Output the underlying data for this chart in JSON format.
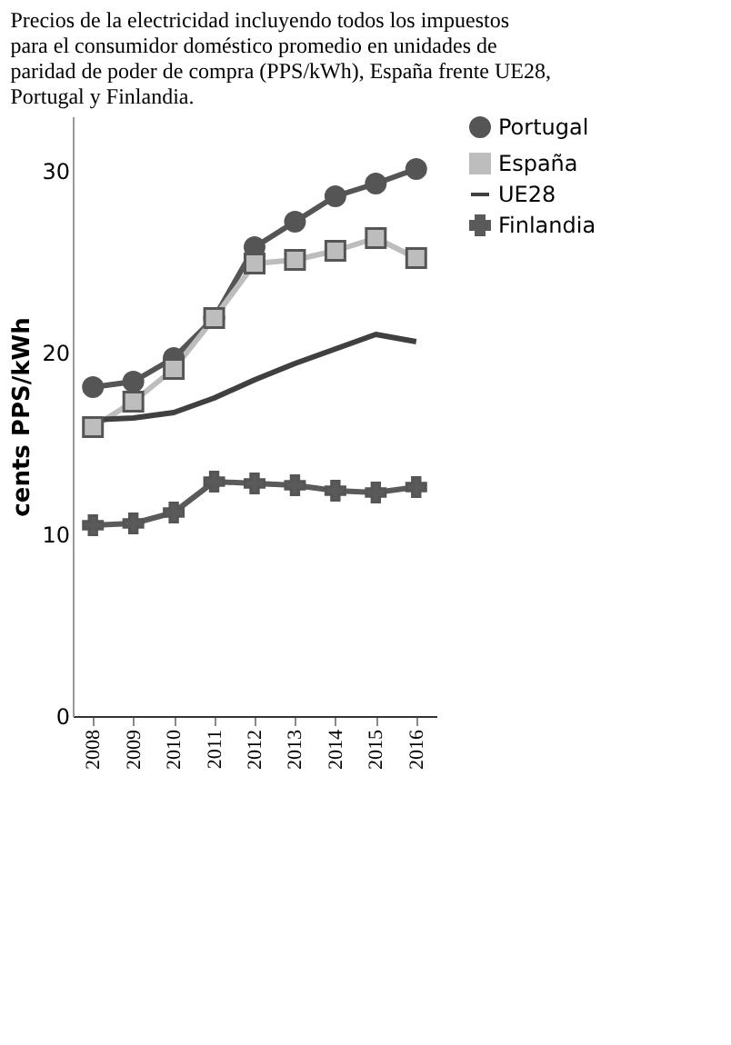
{
  "chart_data": {
    "type": "line",
    "title": "Precios de la electricidad incluyendo todos los impuestos para el consumidor doméstico promedio en unidades de paridad de poder de compra (PPS/kWh), España frente UE28, Portugal y Finlandia.",
    "ylabel": "cents PPS/kWh",
    "categories": [
      "2008",
      "2009",
      "2010",
      "2011",
      "2012",
      "2013",
      "2014",
      "2015",
      "2016"
    ],
    "ylim": [
      0,
      33
    ],
    "yticks": [
      0,
      10,
      20,
      30
    ],
    "grid": false,
    "legend": "right",
    "series": [
      {
        "name": "Portugal",
        "color": "#555555",
        "marker": "circle",
        "values": [
          18.1,
          18.4,
          19.7,
          21.9,
          25.8,
          27.2,
          28.6,
          29.3,
          30.1
        ]
      },
      {
        "name": "España",
        "color": "#bdbdbd",
        "marker": "square",
        "values": [
          15.9,
          17.3,
          19.1,
          21.9,
          24.9,
          25.1,
          25.6,
          26.3,
          25.2
        ]
      },
      {
        "name": "UE28",
        "color": "#404040",
        "marker": "none",
        "values": [
          16.3,
          16.4,
          16.7,
          17.5,
          18.5,
          19.4,
          20.2,
          21.0,
          20.6
        ]
      },
      {
        "name": "Finlandia",
        "color": "#5a5a5a",
        "marker": "cross",
        "values": [
          10.5,
          10.6,
          11.2,
          12.9,
          12.8,
          12.7,
          12.4,
          12.3,
          12.6
        ]
      }
    ]
  }
}
